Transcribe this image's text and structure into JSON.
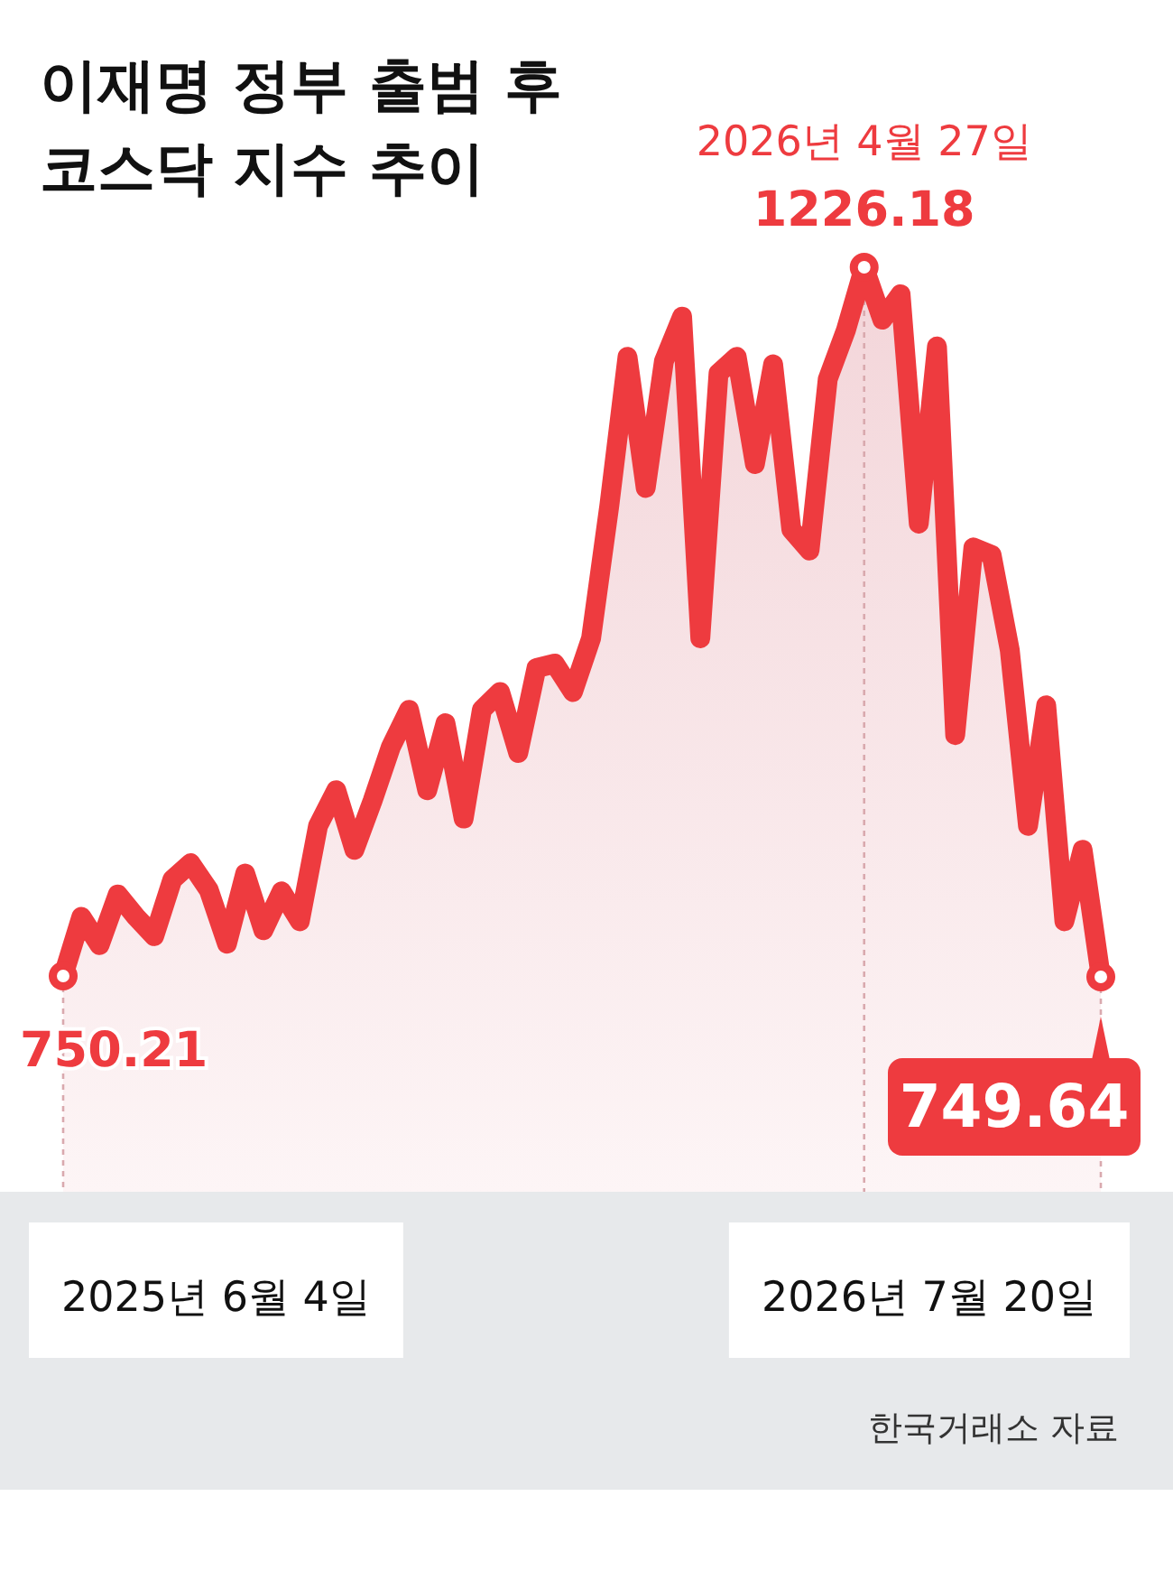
{
  "chart_data": {
    "type": "area",
    "title": "이재명 정부 출범 후 코스닥 지수 추이",
    "color": "#ee3b3f",
    "categories": [
      null,
      null,
      null,
      null,
      null,
      null,
      null,
      null,
      null,
      null,
      null,
      null,
      null,
      null,
      null,
      null,
      null,
      null,
      null,
      null,
      null,
      null,
      null,
      null,
      null,
      null,
      null,
      null,
      null,
      null,
      null,
      null,
      null,
      null,
      null,
      null,
      null,
      null,
      null,
      null,
      null,
      null,
      null,
      null,
      null,
      null,
      null,
      null,
      null,
      null,
      null,
      null,
      null,
      null,
      null,
      null,
      null,
      null
    ],
    "values": [
      750.21,
      790,
      771,
      805,
      790,
      777,
      815,
      826,
      808,
      772,
      819,
      781,
      807,
      787,
      851,
      875,
      835,
      868,
      904,
      929,
      875,
      920,
      856,
      929,
      941,
      900,
      957,
      960,
      941,
      977,
      1066,
      1166,
      1078,
      1163,
      1193,
      977,
      1155,
      1166,
      1094,
      1161,
      1050,
      1036,
      1151,
      1184,
      1226.18,
      1191,
      1208,
      1054,
      1173,
      912,
      1038,
      1033,
      969,
      851,
      932,
      787,
      835,
      749.64
    ],
    "value_labels": [
      "750.21",
      null,
      null,
      null,
      null,
      null,
      null,
      null,
      null,
      null,
      null,
      null,
      null,
      null,
      null,
      null,
      null,
      null,
      null,
      null,
      null,
      null,
      null,
      null,
      null,
      null,
      null,
      null,
      null,
      null,
      null,
      null,
      null,
      null,
      null,
      null,
      null,
      null,
      null,
      null,
      null,
      null,
      null,
      null,
      "1226.18",
      null,
      null,
      null,
      null,
      null,
      null,
      null,
      null,
      null,
      null,
      null,
      null,
      "749.64"
    ],
    "line_style": "solid",
    "annotations": [
      "2026년 4월 27일",
      "2025년 6월 4일",
      "2026년 7월 20일",
      "한국거래소 자료"
    ]
  }
}
